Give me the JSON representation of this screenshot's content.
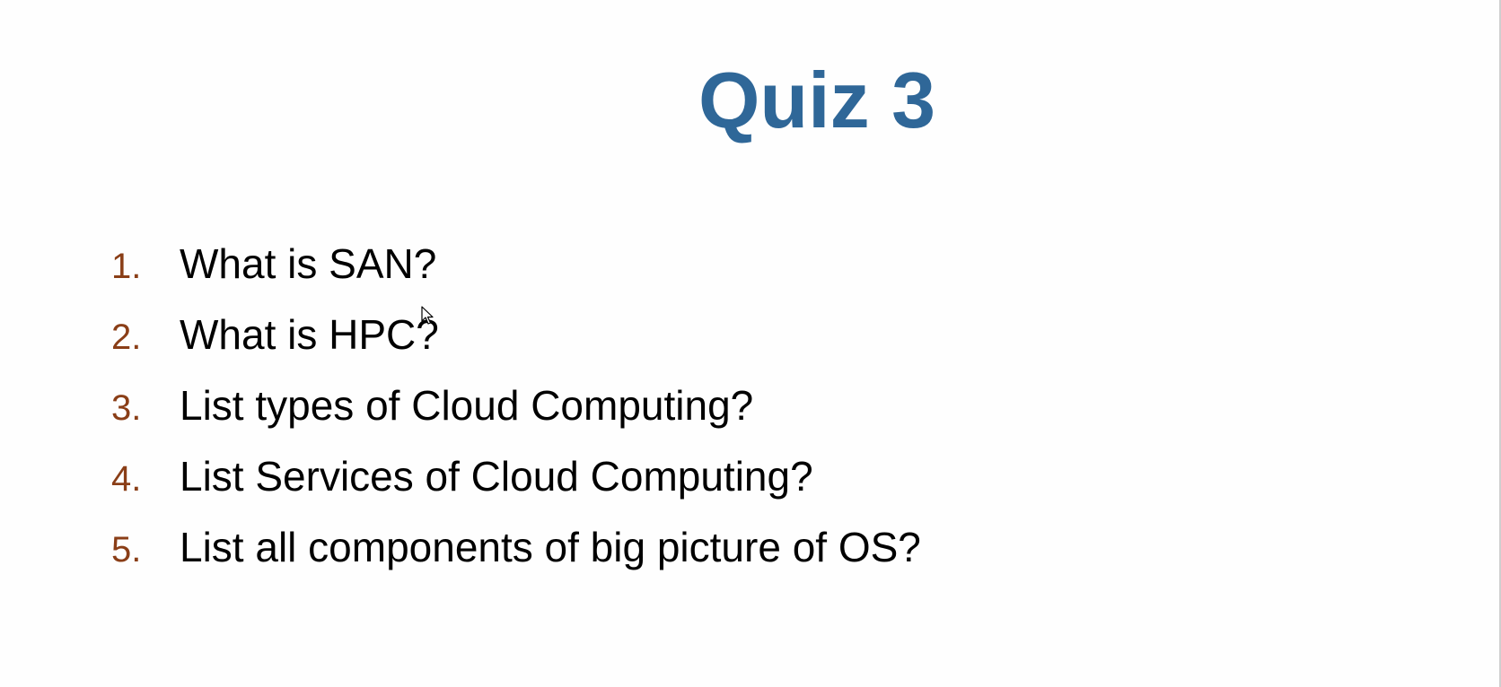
{
  "slide": {
    "title": "Quiz 3",
    "questions": [
      {
        "number": "1.",
        "text": "What is SAN?"
      },
      {
        "number": "2.",
        "text": "What is HPC?"
      },
      {
        "number": "3.",
        "text": "List types of Cloud Computing?"
      },
      {
        "number": "4.",
        "text": "List Services of Cloud Computing?"
      },
      {
        "number": "5.",
        "text": "List all components of big picture of OS?"
      }
    ]
  },
  "colors": {
    "title": "#2f6798",
    "numbers": "#8a3e17",
    "text": "#000000",
    "background": "#fefefe"
  },
  "icons": {
    "cursor": "mouse-pointer-icon"
  }
}
